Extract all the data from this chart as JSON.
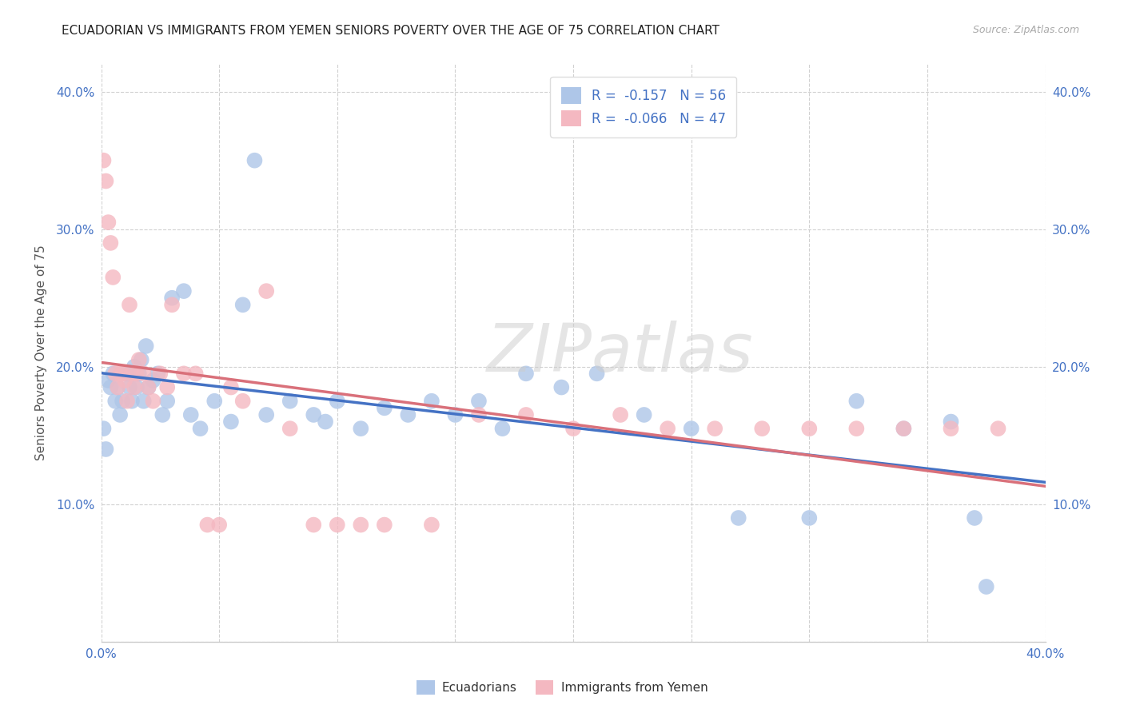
{
  "title": "ECUADORIAN VS IMMIGRANTS FROM YEMEN SENIORS POVERTY OVER THE AGE OF 75 CORRELATION CHART",
  "source": "Source: ZipAtlas.com",
  "ylabel": "Seniors Poverty Over the Age of 75",
  "xmin": 0.0,
  "xmax": 0.4,
  "ymin": 0.0,
  "ymax": 0.42,
  "series1_color": "#aec6e8",
  "series2_color": "#f4b8c1",
  "trendline1_color": "#4472c4",
  "trendline2_color": "#d9707a",
  "background_color": "#ffffff",
  "grid_color": "#cccccc",
  "axis_label_color": "#4472c4",
  "r1": -0.157,
  "n1": 56,
  "r2": -0.066,
  "n2": 47,
  "ecu_x": [
    0.001,
    0.002,
    0.003,
    0.004,
    0.005,
    0.006,
    0.007,
    0.008,
    0.009,
    0.01,
    0.011,
    0.012,
    0.013,
    0.014,
    0.015,
    0.016,
    0.017,
    0.018,
    0.019,
    0.02,
    0.022,
    0.024,
    0.026,
    0.028,
    0.03,
    0.035,
    0.038,
    0.042,
    0.048,
    0.055,
    0.06,
    0.065,
    0.07,
    0.08,
    0.09,
    0.095,
    0.1,
    0.11,
    0.12,
    0.13,
    0.14,
    0.15,
    0.16,
    0.17,
    0.18,
    0.195,
    0.21,
    0.23,
    0.25,
    0.27,
    0.3,
    0.32,
    0.34,
    0.36,
    0.37,
    0.375
  ],
  "ecu_y": [
    0.155,
    0.14,
    0.19,
    0.185,
    0.195,
    0.175,
    0.185,
    0.165,
    0.175,
    0.195,
    0.195,
    0.185,
    0.175,
    0.2,
    0.185,
    0.195,
    0.205,
    0.175,
    0.215,
    0.185,
    0.19,
    0.195,
    0.165,
    0.175,
    0.25,
    0.255,
    0.165,
    0.155,
    0.175,
    0.16,
    0.245,
    0.35,
    0.165,
    0.175,
    0.165,
    0.16,
    0.175,
    0.155,
    0.17,
    0.165,
    0.175,
    0.165,
    0.175,
    0.155,
    0.195,
    0.185,
    0.195,
    0.165,
    0.155,
    0.09,
    0.09,
    0.175,
    0.155,
    0.16,
    0.09,
    0.04
  ],
  "yem_x": [
    0.001,
    0.002,
    0.003,
    0.004,
    0.005,
    0.006,
    0.007,
    0.008,
    0.009,
    0.01,
    0.011,
    0.012,
    0.013,
    0.014,
    0.015,
    0.016,
    0.018,
    0.02,
    0.022,
    0.025,
    0.028,
    0.03,
    0.035,
    0.04,
    0.045,
    0.05,
    0.055,
    0.06,
    0.07,
    0.08,
    0.09,
    0.1,
    0.11,
    0.12,
    0.14,
    0.16,
    0.18,
    0.2,
    0.22,
    0.24,
    0.26,
    0.28,
    0.3,
    0.32,
    0.34,
    0.36,
    0.38
  ],
  "yem_y": [
    0.35,
    0.335,
    0.305,
    0.29,
    0.265,
    0.195,
    0.185,
    0.195,
    0.195,
    0.19,
    0.175,
    0.245,
    0.195,
    0.185,
    0.195,
    0.205,
    0.195,
    0.185,
    0.175,
    0.195,
    0.185,
    0.245,
    0.195,
    0.195,
    0.085,
    0.085,
    0.185,
    0.175,
    0.255,
    0.155,
    0.085,
    0.085,
    0.085,
    0.085,
    0.085,
    0.165,
    0.165,
    0.155,
    0.165,
    0.155,
    0.155,
    0.155,
    0.155,
    0.155,
    0.155,
    0.155,
    0.155
  ]
}
